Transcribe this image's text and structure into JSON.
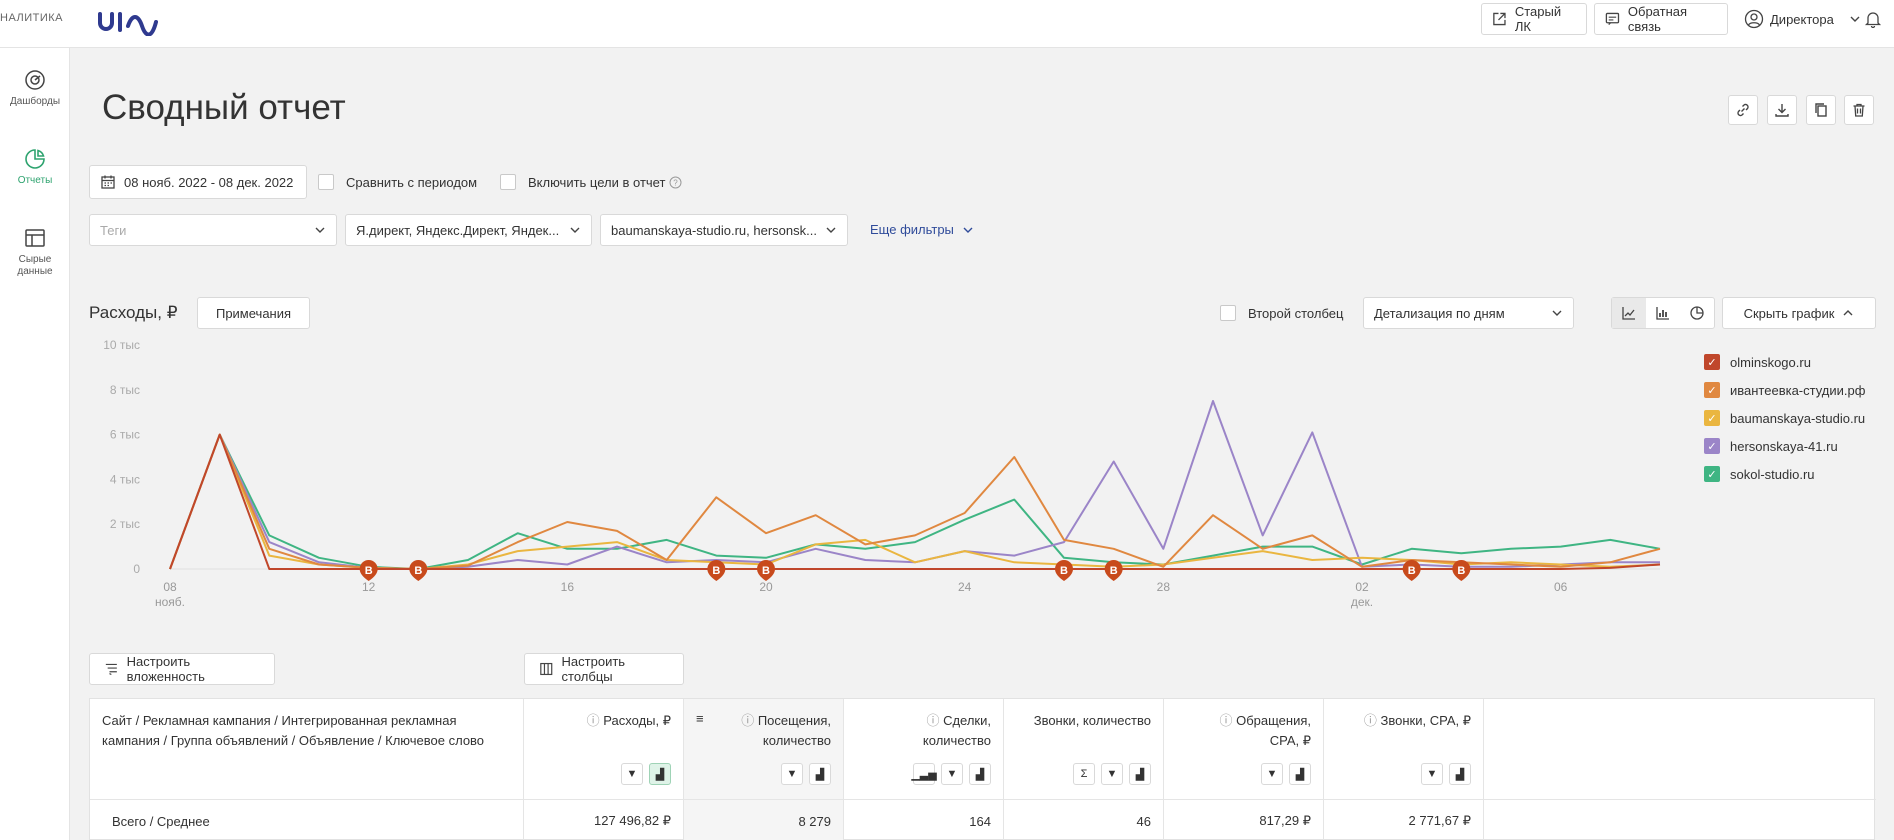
{
  "app": {
    "brand_partial": "НАЛИТИКА",
    "logo_text": "uis"
  },
  "topbar": {
    "old_lk": "Старый ЛК",
    "feedback": "Обратная связь",
    "user": "Директора"
  },
  "sidebar": {
    "items": [
      {
        "label": "Дашборды",
        "icon": "dashboard-icon",
        "active": false
      },
      {
        "label": "Отчеты",
        "icon": "reports-icon",
        "active": true
      },
      {
        "label": "Сырые данные",
        "icon": "raw-data-icon",
        "active": false
      }
    ]
  },
  "page": {
    "title": "Сводный отчет"
  },
  "filters": {
    "date_range": "08 нояб. 2022 - 08 дек. 2022",
    "compare_label": "Сравнить с периодом",
    "goals_label": "Включить цели в отчет",
    "tags_placeholder": "Теги",
    "sources_value": "Я.директ, Яндекс.Директ, Яндек...",
    "sites_value": "baumanskaya-studio.ru, hersonsk...",
    "more_filters": "Еще фильтры"
  },
  "chart_panel": {
    "title": "Расходы, ₽",
    "notes_button": "Примечания",
    "second_column_label": "Второй столбец",
    "detail_value": "Детализация по дням",
    "hide_chart": "Скрыть график"
  },
  "colors": {
    "olminskogo": "#c0472b",
    "ivanteevka": "#e08840",
    "baumanskaya": "#eab640",
    "hersonskaya": "#9b85c8",
    "sokol": "#3fb583",
    "marker": "#c84a1c"
  },
  "chart_data": {
    "type": "line",
    "title": "Расходы, ₽",
    "ylim": [
      0,
      10000
    ],
    "y_ticks": [
      "10 тыс",
      "8 тыс",
      "6 тыс",
      "4 тыс",
      "2 тыс",
      "0"
    ],
    "x_ticks": [
      {
        "label": "08",
        "sub": "нояб."
      },
      {
        "label": "12",
        "sub": ""
      },
      {
        "label": "16",
        "sub": ""
      },
      {
        "label": "20",
        "sub": ""
      },
      {
        "label": "24",
        "sub": ""
      },
      {
        "label": "28",
        "sub": ""
      },
      {
        "label": "02",
        "sub": "дек."
      },
      {
        "label": "06",
        "sub": ""
      }
    ],
    "x": [
      "08.11",
      "09.11",
      "10.11",
      "11.11",
      "12.11",
      "13.11",
      "14.11",
      "15.11",
      "16.11",
      "17.11",
      "18.11",
      "19.11",
      "20.11",
      "21.11",
      "22.11",
      "23.11",
      "24.11",
      "25.11",
      "26.11",
      "27.11",
      "28.11",
      "29.11",
      "30.11",
      "01.12",
      "02.12",
      "03.12",
      "04.12",
      "05.12",
      "06.12",
      "07.12",
      "08.12"
    ],
    "series": [
      {
        "name": "olminskogo.ru",
        "color_key": "olminskogo",
        "values": [
          0,
          6000,
          0,
          0,
          0,
          0,
          0,
          0,
          0,
          0,
          0,
          0,
          0,
          0,
          0,
          0,
          0,
          0,
          0,
          0,
          0,
          0,
          0,
          0,
          0,
          0,
          0,
          0,
          0,
          50,
          200
        ]
      },
      {
        "name": "ивантеевка-студии.рф",
        "color_key": "ivanteevka",
        "values": [
          0,
          6000,
          900,
          200,
          50,
          0,
          150,
          1200,
          2100,
          1700,
          400,
          3200,
          1600,
          2400,
          1100,
          1500,
          2500,
          5000,
          1300,
          900,
          100,
          2400,
          900,
          1500,
          100,
          400,
          300,
          200,
          100,
          300,
          900
        ]
      },
      {
        "name": "baumanskaya-studio.ru",
        "color_key": "baumanskaya",
        "values": [
          0,
          6000,
          600,
          200,
          50,
          0,
          200,
          800,
          1000,
          1200,
          400,
          300,
          200,
          1100,
          1300,
          300,
          800,
          300,
          200,
          100,
          200,
          500,
          800,
          400,
          500,
          400,
          200,
          300,
          200,
          100,
          200
        ]
      },
      {
        "name": "hersonskaya-41.ru",
        "color_key": "hersonskaya",
        "values": [
          0,
          6000,
          1200,
          300,
          50,
          0,
          100,
          400,
          200,
          1000,
          300,
          400,
          300,
          900,
          400,
          300,
          800,
          600,
          1200,
          4800,
          900,
          7500,
          1500,
          6100,
          100,
          200,
          100,
          100,
          200,
          300,
          300
        ]
      },
      {
        "name": "sokol-studio.ru",
        "color_key": "sokol",
        "values": [
          0,
          6000,
          1500,
          500,
          100,
          0,
          400,
          1600,
          900,
          900,
          1300,
          600,
          500,
          1100,
          900,
          1200,
          2200,
          3100,
          500,
          300,
          200,
          600,
          1000,
          1000,
          200,
          900,
          700,
          900,
          1000,
          1300,
          900
        ]
      }
    ],
    "markers": {
      "label": "В",
      "x_index": [
        4,
        5,
        11,
        12,
        18,
        19,
        25,
        26
      ]
    }
  },
  "table": {
    "buttons": {
      "nesting": "Настроить вложенность",
      "columns": "Настроить столбцы"
    },
    "headers": [
      "Сайт / Рекламная кампания / Интегрированная рекламная кампания / Группа объявлений / Объявление / Ключевое слово",
      "Расходы, ₽",
      "Посещения, количество",
      "Сделки, количество",
      "Звонки, количество",
      "Обращения, CPA, ₽",
      "Звонки, CPA, ₽"
    ],
    "total_row": [
      "Всего / Среднее",
      "127 496,82 ₽",
      "8 279",
      "164",
      "46",
      "817,29 ₽",
      "2 771,67 ₽"
    ]
  }
}
